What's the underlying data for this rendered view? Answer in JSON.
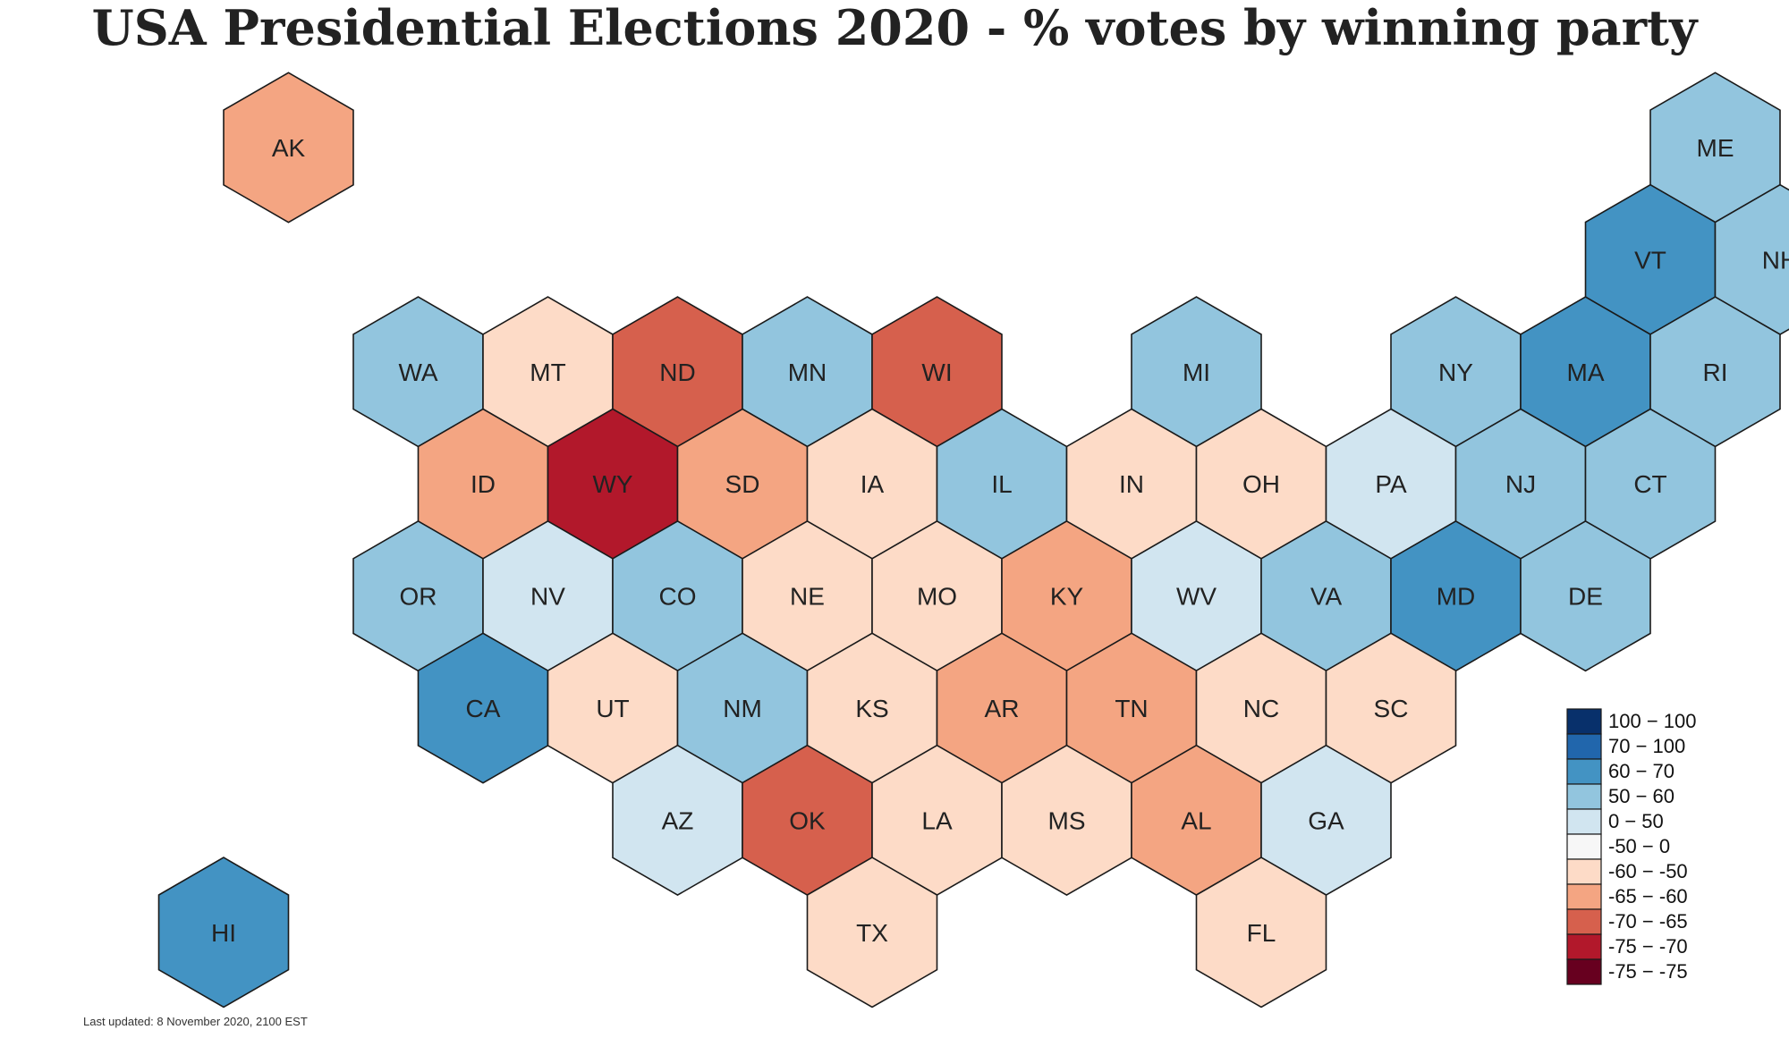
{
  "title": "USA Presidential Elections 2020 - % votes by winning party",
  "footnote": "Last updated: 8 November 2020, 2100 EST",
  "legend": [
    {
      "label": "100 − 100",
      "color": "#08306b"
    },
    {
      "label": "70 − 100",
      "color": "#2166ac"
    },
    {
      "label": "60 − 70",
      "color": "#4393c3"
    },
    {
      "label": "50 − 60",
      "color": "#92c5de"
    },
    {
      "label": "0 − 50",
      "color": "#d1e5f0"
    },
    {
      "label": "-50 − 0",
      "color": "#f7f7f7"
    },
    {
      "label": "-60 − -50",
      "color": "#fddbc7"
    },
    {
      "label": "-65 − -60",
      "color": "#f4a582"
    },
    {
      "label": "-70 − -65",
      "color": "#d6604d"
    },
    {
      "label": "-75 − -70",
      "color": "#b2182b"
    },
    {
      "label": "-75 − -75",
      "color": "#67001f"
    }
  ],
  "states": [
    {
      "abbr": "AK",
      "row": 0,
      "col": 1,
      "bin": 7
    },
    {
      "abbr": "ME",
      "row": 0,
      "col": 12,
      "bin": 3
    },
    {
      "abbr": "VT",
      "row": 1,
      "col": 11,
      "bin": 2
    },
    {
      "abbr": "NH",
      "row": 1,
      "col": 12,
      "bin": 3
    },
    {
      "abbr": "WA",
      "row": 2,
      "col": 2,
      "bin": 3
    },
    {
      "abbr": "MT",
      "row": 2,
      "col": 3,
      "bin": 6
    },
    {
      "abbr": "ND",
      "row": 2,
      "col": 4,
      "bin": 8
    },
    {
      "abbr": "MN",
      "row": 2,
      "col": 5,
      "bin": 3
    },
    {
      "abbr": "WI",
      "row": 2,
      "col": 6,
      "bin": 8
    },
    {
      "abbr": "MI",
      "row": 2,
      "col": 8,
      "bin": 3
    },
    {
      "abbr": "NY",
      "row": 2,
      "col": 10,
      "bin": 3
    },
    {
      "abbr": "MA",
      "row": 2,
      "col": 11,
      "bin": 2
    },
    {
      "abbr": "RI",
      "row": 2,
      "col": 12,
      "bin": 3
    },
    {
      "abbr": "ID",
      "row": 3,
      "col": 2,
      "bin": 7
    },
    {
      "abbr": "WY",
      "row": 3,
      "col": 3,
      "bin": 9
    },
    {
      "abbr": "SD",
      "row": 3,
      "col": 4,
      "bin": 7
    },
    {
      "abbr": "IA",
      "row": 3,
      "col": 5,
      "bin": 6
    },
    {
      "abbr": "IL",
      "row": 3,
      "col": 6,
      "bin": 3
    },
    {
      "abbr": "IN",
      "row": 3,
      "col": 7,
      "bin": 6
    },
    {
      "abbr": "OH",
      "row": 3,
      "col": 8,
      "bin": 6
    },
    {
      "abbr": "PA",
      "row": 3,
      "col": 9,
      "bin": 4
    },
    {
      "abbr": "NJ",
      "row": 3,
      "col": 10,
      "bin": 3
    },
    {
      "abbr": "CT",
      "row": 3,
      "col": 11,
      "bin": 3
    },
    {
      "abbr": "OR",
      "row": 4,
      "col": 2,
      "bin": 3
    },
    {
      "abbr": "NV",
      "row": 4,
      "col": 3,
      "bin": 4
    },
    {
      "abbr": "CO",
      "row": 4,
      "col": 4,
      "bin": 3
    },
    {
      "abbr": "NE",
      "row": 4,
      "col": 5,
      "bin": 6
    },
    {
      "abbr": "MO",
      "row": 4,
      "col": 6,
      "bin": 6
    },
    {
      "abbr": "KY",
      "row": 4,
      "col": 7,
      "bin": 7
    },
    {
      "abbr": "WV",
      "row": 4,
      "col": 8,
      "bin": 4
    },
    {
      "abbr": "VA",
      "row": 4,
      "col": 9,
      "bin": 3
    },
    {
      "abbr": "MD",
      "row": 4,
      "col": 10,
      "bin": 2
    },
    {
      "abbr": "DE",
      "row": 4,
      "col": 11,
      "bin": 3
    },
    {
      "abbr": "CA",
      "row": 5,
      "col": 2,
      "bin": 2
    },
    {
      "abbr": "UT",
      "row": 5,
      "col": 3,
      "bin": 6
    },
    {
      "abbr": "NM",
      "row": 5,
      "col": 4,
      "bin": 3
    },
    {
      "abbr": "KS",
      "row": 5,
      "col": 5,
      "bin": 6
    },
    {
      "abbr": "AR",
      "row": 5,
      "col": 6,
      "bin": 7
    },
    {
      "abbr": "TN",
      "row": 5,
      "col": 7,
      "bin": 7
    },
    {
      "abbr": "NC",
      "row": 5,
      "col": 8,
      "bin": 6
    },
    {
      "abbr": "SC",
      "row": 5,
      "col": 9,
      "bin": 6
    },
    {
      "abbr": "AZ",
      "row": 6,
      "col": 4,
      "bin": 4
    },
    {
      "abbr": "OK",
      "row": 6,
      "col": 5,
      "bin": 8
    },
    {
      "abbr": "LA",
      "row": 6,
      "col": 6,
      "bin": 6
    },
    {
      "abbr": "MS",
      "row": 6,
      "col": 7,
      "bin": 6
    },
    {
      "abbr": "AL",
      "row": 6,
      "col": 8,
      "bin": 7
    },
    {
      "abbr": "GA",
      "row": 6,
      "col": 9,
      "bin": 4
    },
    {
      "abbr": "TX",
      "row": 7,
      "col": 5,
      "bin": 6
    },
    {
      "abbr": "FL",
      "row": 7,
      "col": 8,
      "bin": 6
    },
    {
      "abbr": "HI",
      "row": 7,
      "col": 0,
      "bin": 2
    }
  ]
}
